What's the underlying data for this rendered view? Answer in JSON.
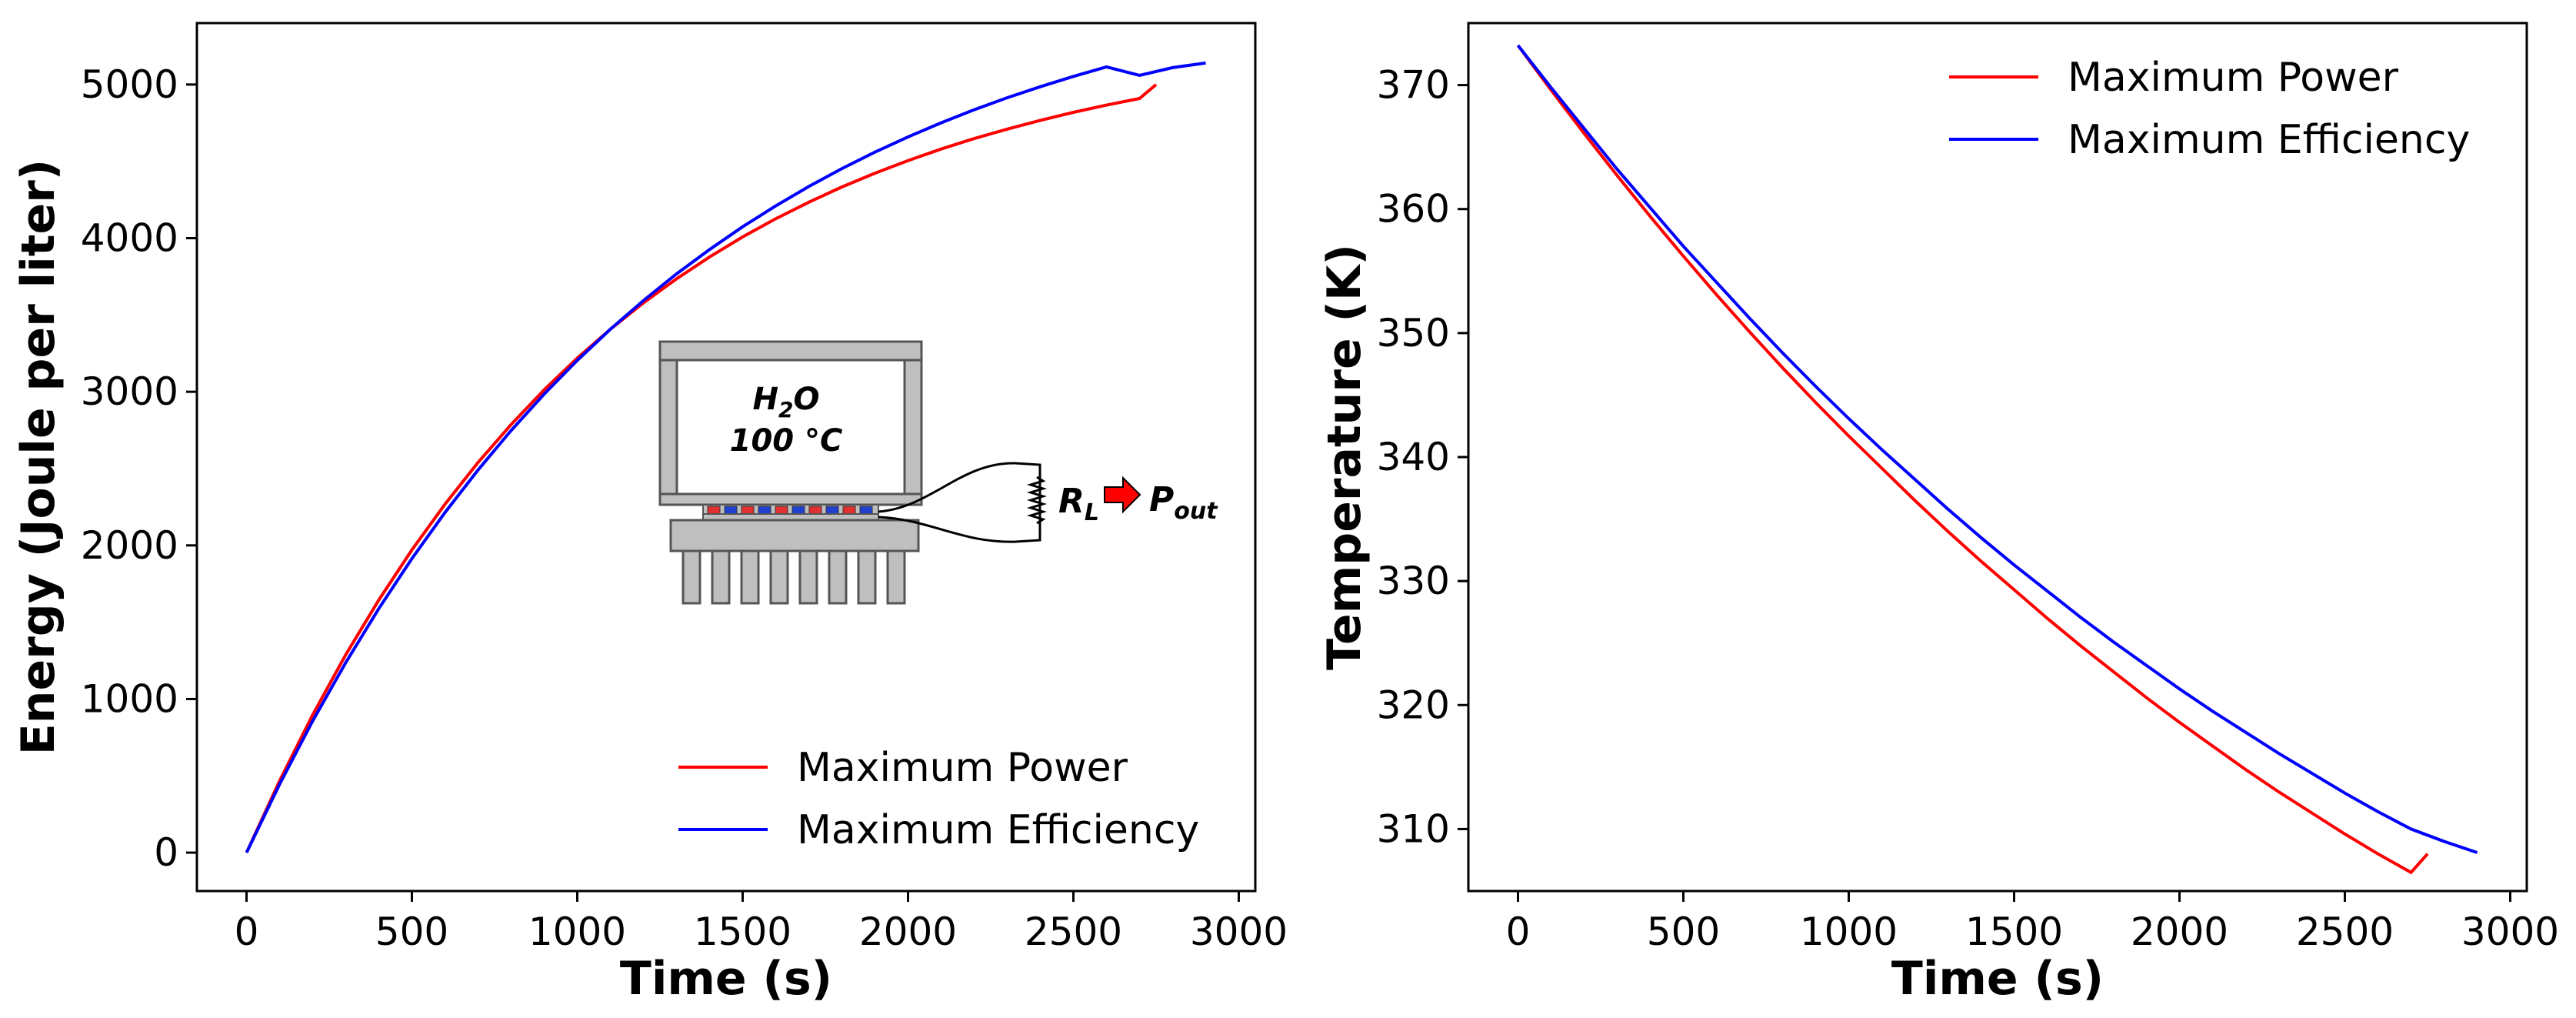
{
  "chart_data": [
    {
      "type": "line",
      "xlabel": "Time (s)",
      "ylabel": "Energy (Joule per liter)",
      "xlim": [
        -150,
        3050
      ],
      "ylim": [
        -250,
        5400
      ],
      "xticks": [
        0,
        500,
        1000,
        1500,
        2000,
        2500,
        3000
      ],
      "yticks": [
        0,
        1000,
        2000,
        3000,
        4000,
        5000
      ],
      "legend_position": "lower-right",
      "series": [
        {
          "name": "Maximum Power",
          "color": "#ff0000",
          "x": [
            0,
            100,
            200,
            300,
            400,
            500,
            600,
            700,
            800,
            900,
            1000,
            1100,
            1200,
            1300,
            1400,
            1500,
            1600,
            1700,
            1800,
            1900,
            2000,
            2100,
            2200,
            2300,
            2400,
            2500,
            2600,
            2700,
            2750
          ],
          "y": [
            0,
            468,
            897,
            1288,
            1645,
            1971,
            2268,
            2540,
            2787,
            3013,
            3219,
            3407,
            3579,
            3735,
            3878,
            4008,
            4126,
            4234,
            4333,
            4423,
            4505,
            4580,
            4648,
            4710,
            4767,
            4819,
            4866,
            4909,
            5000
          ]
        },
        {
          "name": "Maximum Efficiency",
          "color": "#0000ff",
          "x": [
            0,
            100,
            200,
            300,
            400,
            500,
            600,
            700,
            800,
            900,
            1000,
            1100,
            1200,
            1300,
            1400,
            1500,
            1600,
            1700,
            1800,
            1900,
            2000,
            2100,
            2200,
            2300,
            2400,
            2500,
            2600,
            2700,
            2800,
            2900
          ],
          "y": [
            0,
            445,
            857,
            1237,
            1589,
            1914,
            2214,
            2491,
            2748,
            2985,
            3204,
            3407,
            3594,
            3767,
            3926,
            4074,
            4210,
            4336,
            4453,
            4560,
            4659,
            4751,
            4836,
            4914,
            4986,
            5053,
            5115,
            5060,
            5110,
            5140
          ]
        }
      ],
      "inset": {
        "liquid": "H",
        "liquid_sub": "2",
        "liquid_end": "O",
        "temperature": "100 °C",
        "load": "R",
        "load_sub": "L",
        "output": "P",
        "output_sub": "out"
      }
    },
    {
      "type": "line",
      "xlabel": "Time (s)",
      "ylabel": "Temperature (K)",
      "xlim": [
        -150,
        3050
      ],
      "ylim": [
        305,
        375
      ],
      "xticks": [
        0,
        500,
        1000,
        1500,
        2000,
        2500,
        3000
      ],
      "yticks": [
        310,
        320,
        330,
        340,
        350,
        360,
        370
      ],
      "legend_position": "upper-right",
      "series": [
        {
          "name": "Maximum Power",
          "color": "#ff0000",
          "x": [
            0,
            100,
            200,
            300,
            400,
            500,
            600,
            700,
            800,
            900,
            1000,
            1100,
            1200,
            1300,
            1400,
            1500,
            1600,
            1700,
            1800,
            1900,
            2000,
            2100,
            2200,
            2300,
            2400,
            2500,
            2600,
            2700,
            2750
          ],
          "y": [
            373.2,
            369.6,
            366.1,
            362.7,
            359.4,
            356.2,
            353.1,
            350.1,
            347.2,
            344.4,
            341.7,
            339.1,
            336.5,
            334.0,
            331.6,
            329.3,
            327.0,
            324.8,
            322.7,
            320.6,
            318.6,
            316.7,
            314.8,
            313.0,
            311.3,
            309.6,
            308.0,
            306.5,
            308.0
          ]
        },
        {
          "name": "Maximum Efficiency",
          "color": "#0000ff",
          "x": [
            0,
            100,
            200,
            300,
            400,
            500,
            600,
            700,
            800,
            900,
            1000,
            1100,
            1200,
            1300,
            1400,
            1500,
            1600,
            1700,
            1800,
            1900,
            2000,
            2100,
            2200,
            2300,
            2400,
            2500,
            2600,
            2700,
            2800,
            2900
          ],
          "y": [
            373.2,
            369.8,
            366.5,
            363.2,
            360.1,
            357.0,
            354.1,
            351.2,
            348.4,
            345.7,
            343.1,
            340.6,
            338.2,
            335.8,
            333.5,
            331.3,
            329.2,
            327.1,
            325.1,
            323.2,
            321.3,
            319.5,
            317.8,
            316.1,
            314.5,
            312.9,
            311.4,
            310.0,
            309.0,
            308.1
          ]
        }
      ]
    }
  ]
}
